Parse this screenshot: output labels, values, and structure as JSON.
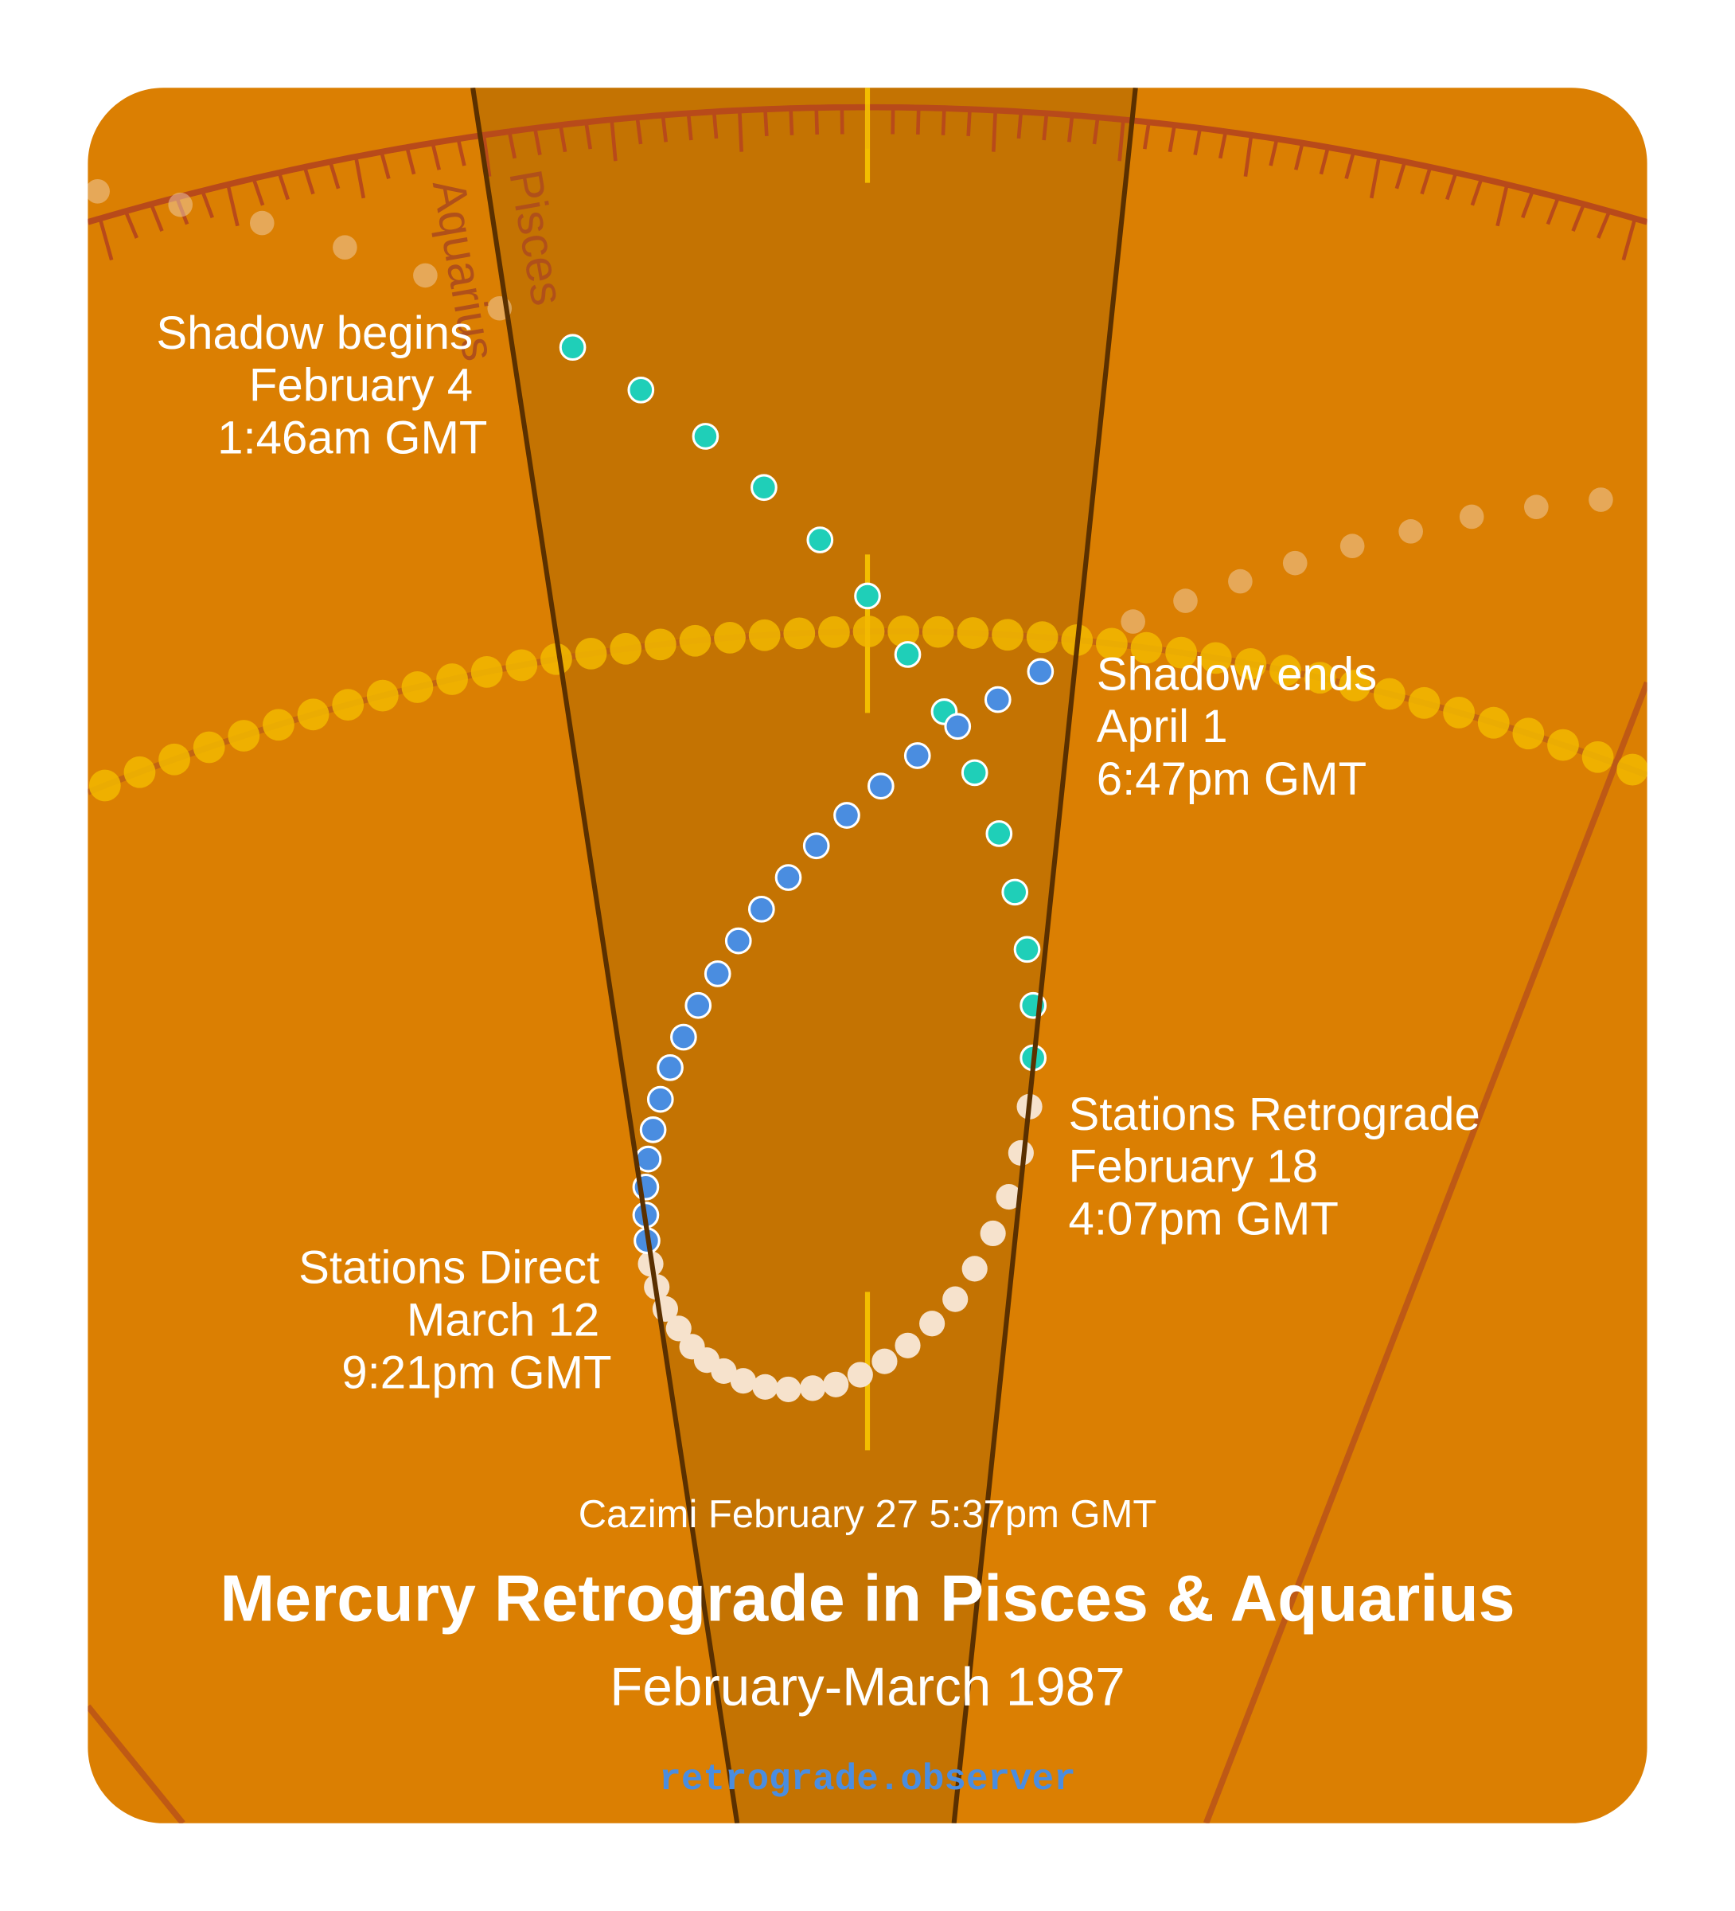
{
  "zodiac_labels": [
    "Pisces",
    "Aquarius"
  ],
  "events": [
    {
      "label": "Shadow begins",
      "date": "February 4",
      "time": "1:46am GMT"
    },
    {
      "label": "Shadow ends",
      "date": "April 1",
      "time": "6:47pm GMT"
    },
    {
      "label": "Stations Retrograde",
      "date": "February 18",
      "time": "4:07pm GMT"
    },
    {
      "label": "Stations Direct",
      "date": "March 12",
      "time": "9:21pm GMT"
    }
  ],
  "cazimi": "Cazimi February 27 5:37pm GMT",
  "title": "Mercury Retrograde in Pisces & Aquarius",
  "subtitle": "February-March 1987",
  "site": "retrograde.observer"
}
